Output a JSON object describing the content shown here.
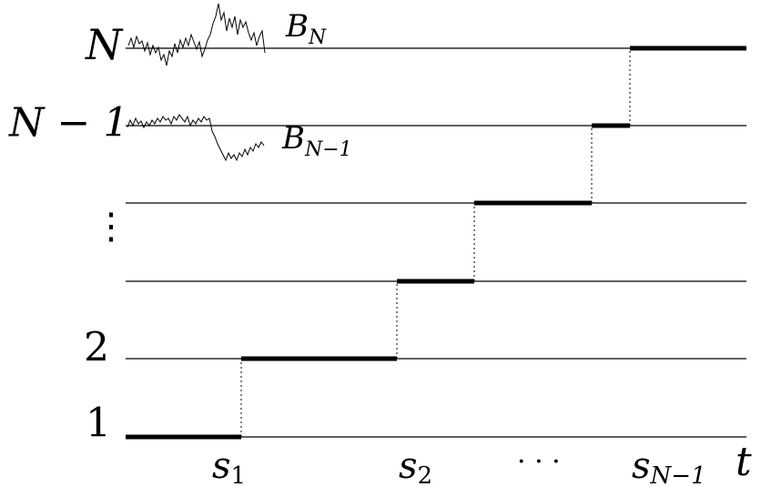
{
  "colors": {
    "ink": "#000000",
    "background": "#ffffff"
  },
  "level_labels": {
    "top": "N",
    "second": "N − 1",
    "ellipsis": "⋮",
    "two": "2",
    "one": "1"
  },
  "paths": {
    "top": "B",
    "top_sub": "N",
    "second": "B",
    "second_sub": "N−1"
  },
  "time_labels": {
    "s1": "s",
    "s1_sub": "1",
    "s2": "s",
    "s2_sub": "2",
    "dots": "· · ·",
    "sN1": "s",
    "sN1_sub": "N−1",
    "t": "t"
  }
}
